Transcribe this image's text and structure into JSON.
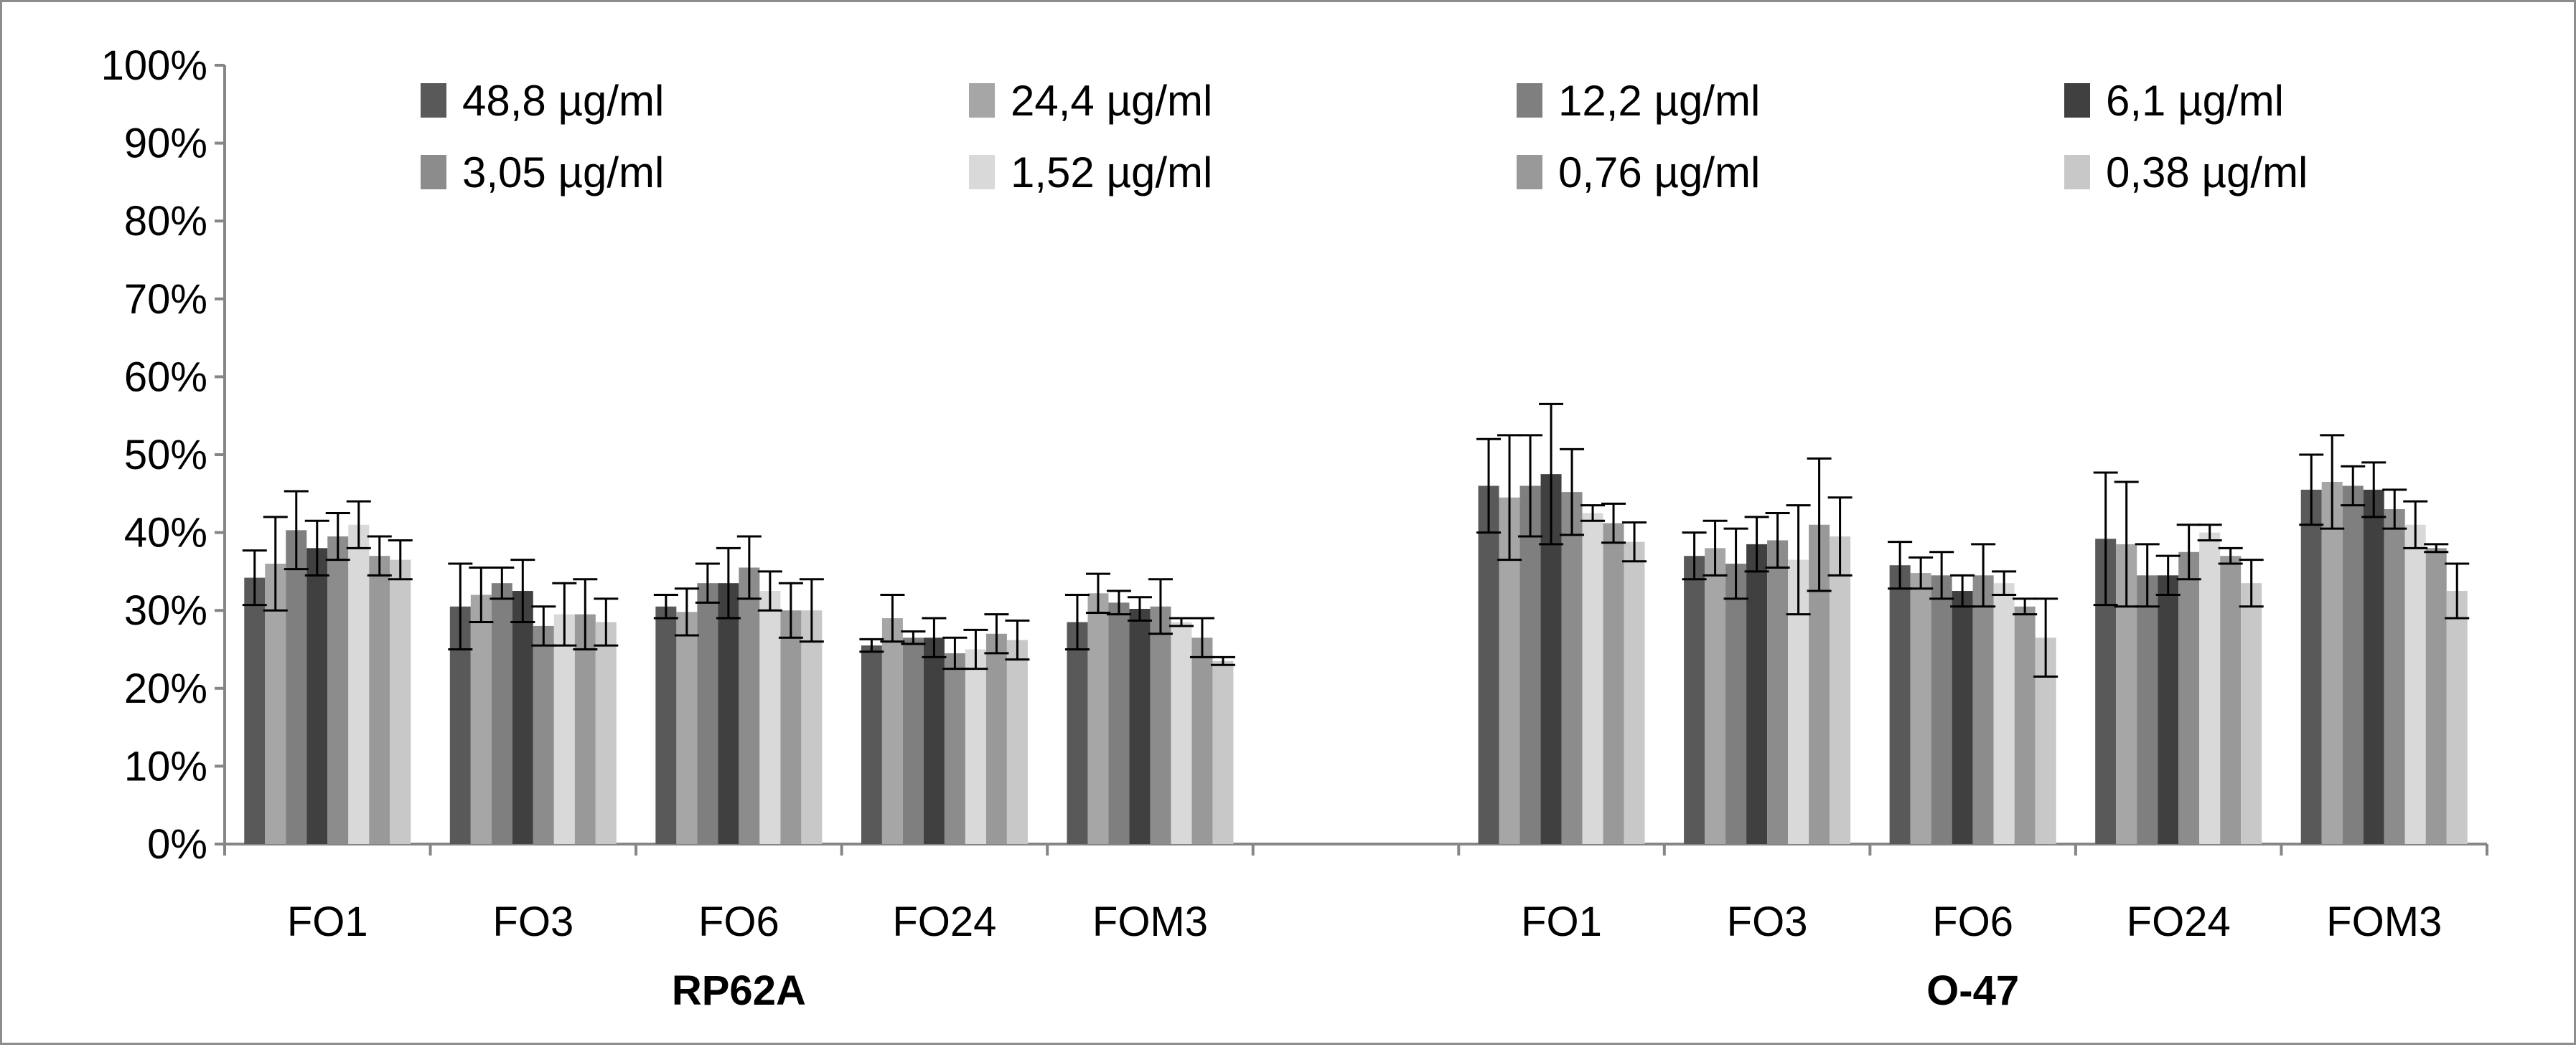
{
  "chart_data": {
    "type": "bar",
    "title": "",
    "xlabel": "",
    "ylabel": "",
    "ylim": [
      0,
      100
    ],
    "y_ticks": [
      "0%",
      "10%",
      "20%",
      "30%",
      "40%",
      "50%",
      "60%",
      "70%",
      "80%",
      "90%",
      "100%"
    ],
    "grid": false,
    "legend_position": "top",
    "categories": [
      "FO1",
      "FO3",
      "FO6",
      "FO24",
      "FOM3",
      "",
      "FO1",
      "FO3",
      "FO6",
      "FO24",
      "FOM3"
    ],
    "groups": [
      {
        "label": "RP62A"
      },
      {
        "label": "O-47"
      }
    ],
    "series": [
      {
        "name": "48,8 µg/ml",
        "color": "#595959",
        "values": [
          34.2,
          30.5,
          30.5,
          25.5,
          28.5,
          null,
          46.0,
          37.0,
          35.8,
          39.2,
          45.5
        ],
        "errors": [
          3.5,
          5.5,
          1.5,
          0.8,
          3.5,
          null,
          6.0,
          3.0,
          3.0,
          8.5,
          4.5
        ]
      },
      {
        "name": "24,4 µg/ml",
        "color": "#a6a6a6",
        "values": [
          36.0,
          32.0,
          29.8,
          29.0,
          32.2,
          null,
          44.5,
          38.0,
          34.8,
          38.5,
          46.5
        ],
        "errors": [
          6.0,
          3.5,
          3.0,
          3.0,
          2.5,
          null,
          8.0,
          3.5,
          2.0,
          8.0,
          6.0
        ]
      },
      {
        "name": "12,2 µg/ml",
        "color": "#7f7f7f",
        "values": [
          40.3,
          33.5,
          33.5,
          26.5,
          31.0,
          null,
          46.0,
          36.0,
          34.5,
          34.5,
          46.0
        ],
        "errors": [
          5.0,
          2.0,
          2.5,
          0.8,
          1.5,
          null,
          6.5,
          4.5,
          3.0,
          4.0,
          2.5
        ]
      },
      {
        "name": "6,1 µg/ml",
        "color": "#404040",
        "values": [
          38.0,
          32.5,
          33.5,
          26.5,
          30.2,
          null,
          47.5,
          38.5,
          32.5,
          34.5,
          45.5
        ],
        "errors": [
          3.5,
          4.0,
          4.5,
          2.5,
          1.5,
          null,
          9.0,
          3.5,
          2.0,
          2.5,
          3.5
        ]
      },
      {
        "name": "3,05 µg/ml",
        "color": "#8c8c8c",
        "values": [
          39.5,
          28.0,
          35.5,
          24.5,
          30.5,
          null,
          45.2,
          39.0,
          34.5,
          37.5,
          43.0
        ],
        "errors": [
          3.0,
          2.5,
          4.0,
          2.0,
          3.5,
          null,
          5.5,
          3.5,
          4.0,
          3.5,
          2.5
        ]
      },
      {
        "name": "1,52 µg/ml",
        "color": "#d9d9d9",
        "values": [
          41.0,
          29.5,
          32.5,
          25.0,
          28.5,
          null,
          42.5,
          36.5,
          33.5,
          40.0,
          41.0
        ],
        "errors": [
          3.0,
          4.0,
          2.5,
          2.5,
          0.5,
          null,
          1.0,
          7.0,
          1.5,
          1.0,
          3.0
        ]
      },
      {
        "name": "0,76 µg/ml",
        "color": "#999999",
        "values": [
          37.0,
          29.5,
          30.0,
          27.0,
          26.5,
          null,
          41.2,
          41.0,
          30.5,
          37.0,
          38.0
        ],
        "errors": [
          2.5,
          4.5,
          3.5,
          2.5,
          2.5,
          null,
          2.5,
          8.5,
          1.0,
          1.0,
          0.5
        ]
      },
      {
        "name": "0,38 µg/ml",
        "color": "#c8c8c8",
        "values": [
          36.5,
          28.5,
          30.0,
          26.2,
          23.5,
          null,
          38.8,
          39.5,
          26.5,
          33.5,
          32.5
        ],
        "errors": [
          2.5,
          3.0,
          4.0,
          2.5,
          0.5,
          null,
          2.5,
          5.0,
          5.0,
          3.0,
          3.5
        ]
      }
    ]
  }
}
